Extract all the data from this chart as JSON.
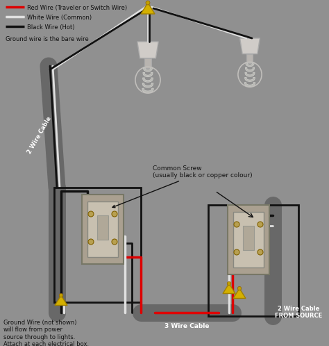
{
  "bg_color": "#909090",
  "legend": [
    {
      "label": "Red Wire (Traveler or Switch Wire)",
      "color": "#dd0000"
    },
    {
      "label": "White Wire (Common)",
      "color": "#e0e0e0"
    },
    {
      "label": "Black Wire (Hot)",
      "color": "#111111"
    }
  ],
  "ground_note": "Ground wire is the bare wire",
  "bottom_note": "Ground Wire (not shown)\nwill flow from power\nsource through to lights.\nAttach at each electrical box.",
  "label_2wire_left": "2 Wire Cable",
  "label_3wire": "3 Wire Cable",
  "label_2wire_right": "2 Wire Cable\nFROM SOURCE",
  "common_screw_label": "Common Screw\n(usually black or copper colour)",
  "wire_lw": 2.5,
  "cable_color": "#686868"
}
